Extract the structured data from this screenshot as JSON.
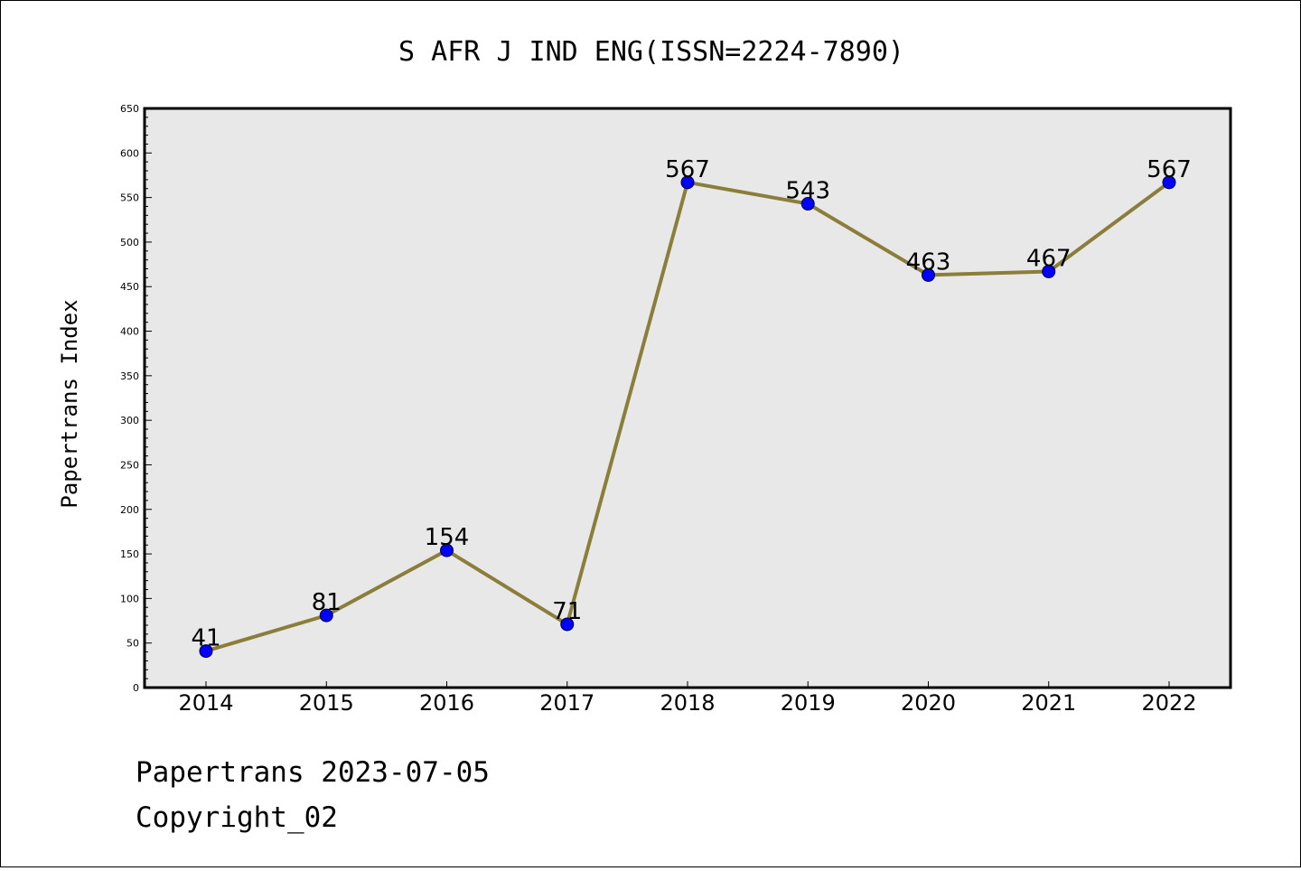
{
  "chart_data": {
    "type": "line",
    "title": "S AFR J IND ENG(ISSN=2224-7890)",
    "xlabel": "",
    "ylabel": "Papertrans Index",
    "categories": [
      "2014",
      "2015",
      "2016",
      "2017",
      "2018",
      "2019",
      "2020",
      "2021",
      "2022"
    ],
    "values": [
      41,
      81,
      154,
      71,
      567,
      543,
      463,
      467,
      567
    ],
    "ylim": [
      0,
      650
    ],
    "yticks": [
      0,
      50,
      100,
      150,
      200,
      250,
      300,
      350,
      400,
      450,
      500,
      550,
      600,
      650
    ],
    "grid": false,
    "legend": "none",
    "line_color": "#8b7d3a",
    "marker_color": "#0000ff",
    "plot_background": "#e8e8e8"
  },
  "footer": {
    "line1": "Papertrans 2023-07-05",
    "line2": "Copyright_02"
  }
}
